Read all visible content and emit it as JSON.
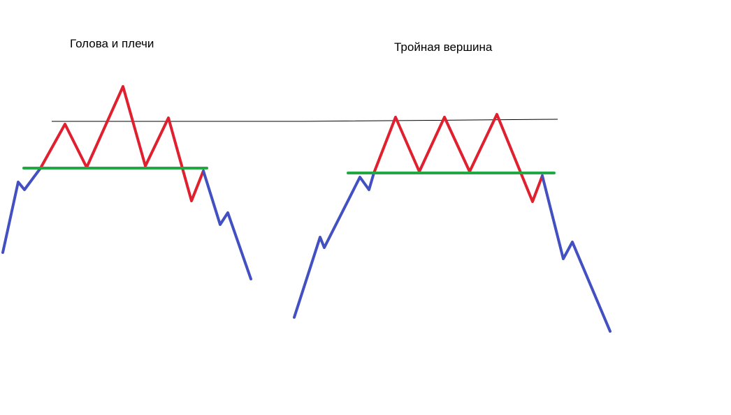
{
  "titles": {
    "head_and_shoulders": "Голова и плечи",
    "triple_top": "Тройная вершина"
  },
  "colors": {
    "uptrend": "#4350c2",
    "pattern": "#e0202e",
    "neckline": "#22a843",
    "resistance": "#000000"
  }
}
